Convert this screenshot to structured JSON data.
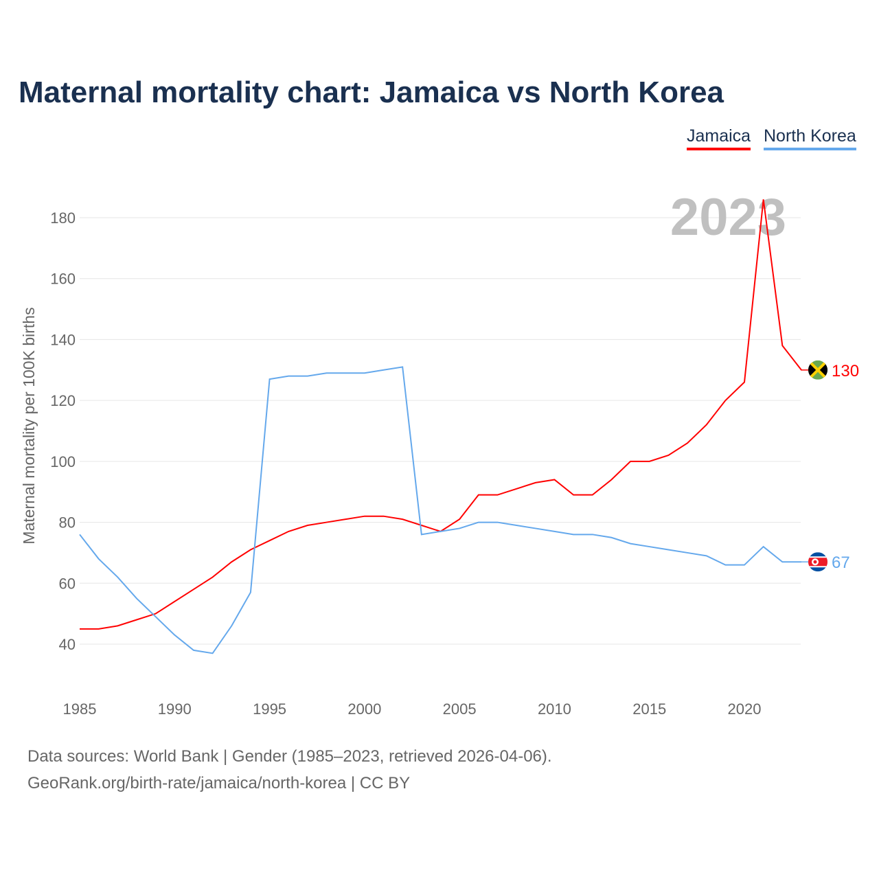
{
  "title": "Maternal mortality chart: Jamaica vs North Korea",
  "legend": [
    {
      "label": "Jamaica",
      "color": "#ff0000"
    },
    {
      "label": "North Korea",
      "color": "#64a8ec"
    }
  ],
  "footer": {
    "line1": "Data sources: World Bank | Gender (1985–2023, retrieved 2026-04-06).",
    "line2": "GeoRank.org/birth-rate/jamaica/north-korea | CC BY"
  },
  "chart_data": {
    "type": "line",
    "title": "Maternal mortality chart: Jamaica vs North Korea",
    "ylabel": "Maternal mortality per 100K births",
    "xlabel": "",
    "year_label": "2023",
    "xlim": [
      1985,
      2023
    ],
    "ylim": [
      28,
      195
    ],
    "xticks": [
      1985,
      1990,
      1995,
      2000,
      2005,
      2010,
      2015,
      2020
    ],
    "yticks": [
      40,
      60,
      80,
      100,
      120,
      140,
      160,
      180
    ],
    "grid": true,
    "x": [
      1985,
      1986,
      1987,
      1988,
      1989,
      1990,
      1991,
      1992,
      1993,
      1994,
      1995,
      1996,
      1997,
      1998,
      1999,
      2000,
      2001,
      2002,
      2003,
      2004,
      2005,
      2006,
      2007,
      2008,
      2009,
      2010,
      2011,
      2012,
      2013,
      2014,
      2015,
      2016,
      2017,
      2018,
      2019,
      2020,
      2021,
      2022,
      2023
    ],
    "series": [
      {
        "name": "Jamaica",
        "color": "#ff0000",
        "end_label": "130",
        "flag": "jamaica-flag",
        "values": [
          45,
          45,
          46,
          48,
          50,
          54,
          58,
          62,
          67,
          71,
          74,
          77,
          79,
          80,
          81,
          82,
          82,
          81,
          79,
          77,
          81,
          89,
          89,
          91,
          93,
          94,
          89,
          89,
          94,
          100,
          100,
          102,
          106,
          112,
          120,
          126,
          186,
          138,
          130
        ]
      },
      {
        "name": "North Korea",
        "color": "#64a8ec",
        "end_label": "67",
        "flag": "north-korea-flag",
        "values": [
          76,
          68,
          62,
          55,
          49,
          43,
          38,
          37,
          46,
          57,
          127,
          128,
          128,
          129,
          129,
          129,
          130,
          131,
          76,
          77,
          78,
          80,
          80,
          79,
          78,
          77,
          76,
          76,
          75,
          73,
          72,
          71,
          70,
          69,
          66,
          66,
          72,
          67,
          67
        ]
      }
    ]
  }
}
